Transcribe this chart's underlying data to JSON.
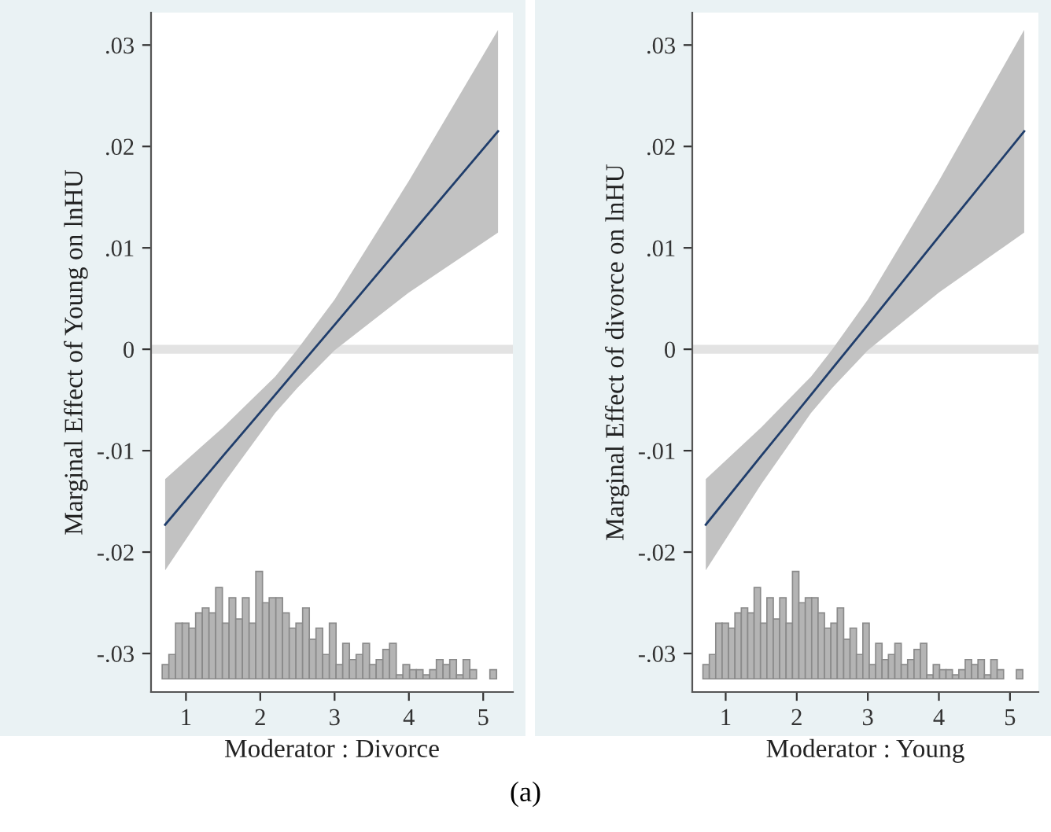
{
  "chart_data": [
    {
      "type": "line",
      "ylabel": "Marginal Effect of Young on lnHU",
      "xlabel": "Moderator : Divorce",
      "annotations": [
        "(a)"
      ],
      "xlim": [
        0.53,
        5.4
      ],
      "xticks": [
        1,
        2,
        3,
        4,
        5
      ],
      "ylim": [
        -0.0338,
        0.0332
      ],
      "yticks": [
        {
          "value": 0.03,
          "label": ".03"
        },
        {
          "value": 0.02,
          "label": ".02"
        },
        {
          "value": 0.01,
          "label": ".01"
        },
        {
          "value": 0,
          "label": "0"
        },
        {
          "value": -0.01,
          "label": "-.01"
        },
        {
          "value": -0.02,
          "label": "-.02"
        },
        {
          "value": -0.03,
          "label": "-.03"
        }
      ],
      "ref_lines": [
        {
          "axis": "y",
          "value": 0,
          "color": "#e3e3e3"
        }
      ],
      "series": [
        {
          "type": "line",
          "color": "#1f3d6b",
          "x": [
            0.72,
            1.5,
            2.2,
            2.5,
            3,
            4,
            5.2
          ],
          "values": [
            -0.0173,
            -0.0105,
            -0.0045,
            -0.0019,
            0.0024,
            0.0111,
            0.0215
          ],
          "lower": [
            -0.0218,
            -0.0133,
            -0.0063,
            -0.0038,
            -0.0001,
            0.0056,
            0.0115
          ],
          "upper": [
            -0.0128,
            -0.0077,
            -0.0027,
            0.0,
            0.0049,
            0.0166,
            0.0315
          ]
        },
        {
          "type": "histogram",
          "color": "#b4b4b4",
          "bins": [
            0.68,
            0.77,
            0.86,
            0.95,
            1.04,
            1.13,
            1.22,
            1.31,
            1.4,
            1.49,
            1.58,
            1.67,
            1.76,
            1.85,
            1.94,
            2.03,
            2.12,
            2.21,
            2.3,
            2.39,
            2.48,
            2.57,
            2.66,
            2.75,
            2.84,
            2.93,
            3.02,
            3.11,
            3.2,
            3.29,
            3.38,
            3.47,
            3.56,
            3.65,
            3.74,
            3.83,
            3.92,
            4.01,
            4.1,
            4.19,
            4.28,
            4.37,
            4.46,
            4.55,
            4.64,
            4.73,
            4.82,
            4.91,
            5.0,
            5.09,
            5.18
          ],
          "values": [
            0.0014,
            0.0024,
            0.0055,
            0.0055,
            0.005,
            0.0065,
            0.007,
            0.0065,
            0.009,
            0.0055,
            0.008,
            0.0059,
            0.008,
            0.0055,
            0.0106,
            0.0075,
            0.008,
            0.008,
            0.0065,
            0.005,
            0.0055,
            0.007,
            0.0039,
            0.005,
            0.0024,
            0.0055,
            0.0014,
            0.0035,
            0.0019,
            0.0024,
            0.0035,
            0.0014,
            0.0019,
            0.0029,
            0.0035,
            0.0004,
            0.0014,
            0.0009,
            0.0009,
            0.0004,
            0.0009,
            0.0019,
            0.0014,
            0.0019,
            0.0004,
            0.0019,
            0.0009,
            null,
            null,
            0.0009
          ],
          "base": [
            -0.0325,
            -0.0325,
            -0.0325,
            -0.0325,
            -0.0325,
            -0.0325,
            -0.0325,
            -0.0325,
            -0.0325,
            -0.0325,
            -0.0325,
            -0.0325,
            -0.0325,
            -0.0325,
            -0.0325,
            -0.0325,
            -0.0325,
            -0.0325,
            -0.0325,
            -0.0325,
            -0.0325,
            -0.0325,
            -0.0325,
            -0.0325,
            -0.0325,
            -0.0325,
            -0.0325,
            -0.0325,
            -0.0325,
            -0.0325,
            -0.0325,
            -0.0325,
            -0.0325,
            -0.0325,
            -0.0325,
            -0.0325,
            -0.0325,
            -0.0325,
            -0.0325,
            -0.0325,
            -0.0325,
            -0.0325,
            -0.0325,
            -0.0325,
            -0.0325,
            -0.0325,
            -0.0325,
            null,
            null,
            -0.0325
          ]
        }
      ]
    },
    {
      "type": "line",
      "ylabel": "Marginal Effect of divorce on lnHU",
      "xlabel": "Moderator : Young",
      "xlim": [
        0.53,
        5.4
      ],
      "xticks": [
        1,
        2,
        3,
        4,
        5
      ],
      "ylim": [
        -0.0338,
        0.0332
      ],
      "yticks": [
        {
          "value": 0.03,
          "label": ".03"
        },
        {
          "value": 0.02,
          "label": ".02"
        },
        {
          "value": 0.01,
          "label": ".01"
        },
        {
          "value": 0,
          "label": "0"
        },
        {
          "value": -0.01,
          "label": "-.01"
        },
        {
          "value": -0.02,
          "label": "-.02"
        },
        {
          "value": -0.03,
          "label": "-.03"
        }
      ],
      "ref_lines": [
        {
          "axis": "y",
          "value": 0,
          "color": "#e3e3e3"
        }
      ],
      "series": [
        {
          "type": "line",
          "color": "#1f3d6b",
          "x": [
            0.72,
            1.5,
            2.2,
            2.5,
            3,
            4,
            5.2
          ],
          "values": [
            -0.0173,
            -0.0105,
            -0.0045,
            -0.0019,
            0.0024,
            0.0111,
            0.0215
          ],
          "lower": [
            -0.0218,
            -0.0133,
            -0.0063,
            -0.0038,
            -0.0001,
            0.0056,
            0.0115
          ],
          "upper": [
            -0.0128,
            -0.0077,
            -0.0027,
            0.0,
            0.0049,
            0.0166,
            0.0315
          ]
        },
        {
          "type": "histogram",
          "color": "#b4b4b4",
          "bins": [
            0.68,
            0.77,
            0.86,
            0.95,
            1.04,
            1.13,
            1.22,
            1.31,
            1.4,
            1.49,
            1.58,
            1.67,
            1.76,
            1.85,
            1.94,
            2.03,
            2.12,
            2.21,
            2.3,
            2.39,
            2.48,
            2.57,
            2.66,
            2.75,
            2.84,
            2.93,
            3.02,
            3.11,
            3.2,
            3.29,
            3.38,
            3.47,
            3.56,
            3.65,
            3.74,
            3.83,
            3.92,
            4.01,
            4.1,
            4.19,
            4.28,
            4.37,
            4.46,
            4.55,
            4.64,
            4.73,
            4.82,
            4.91,
            5.0,
            5.09,
            5.18
          ],
          "values": [
            0.0014,
            0.0024,
            0.0055,
            0.0055,
            0.005,
            0.0065,
            0.007,
            0.0065,
            0.009,
            0.0055,
            0.008,
            0.0059,
            0.008,
            0.0055,
            0.0106,
            0.0075,
            0.008,
            0.008,
            0.0065,
            0.005,
            0.0055,
            0.007,
            0.0039,
            0.005,
            0.0024,
            0.0055,
            0.0014,
            0.0035,
            0.0019,
            0.0024,
            0.0035,
            0.0014,
            0.0019,
            0.0029,
            0.0035,
            0.0004,
            0.0014,
            0.0009,
            0.0009,
            0.0004,
            0.0009,
            0.0019,
            0.0014,
            0.0019,
            0.0004,
            0.0019,
            0.0009,
            null,
            null,
            0.0009
          ],
          "base": [
            -0.0325,
            -0.0325,
            -0.0325,
            -0.0325,
            -0.0325,
            -0.0325,
            -0.0325,
            -0.0325,
            -0.0325,
            -0.0325,
            -0.0325,
            -0.0325,
            -0.0325,
            -0.0325,
            -0.0325,
            -0.0325,
            -0.0325,
            -0.0325,
            -0.0325,
            -0.0325,
            -0.0325,
            -0.0325,
            -0.0325,
            -0.0325,
            -0.0325,
            -0.0325,
            -0.0325,
            -0.0325,
            -0.0325,
            -0.0325,
            -0.0325,
            -0.0325,
            -0.0325,
            -0.0325,
            -0.0325,
            -0.0325,
            -0.0325,
            -0.0325,
            -0.0325,
            -0.0325,
            -0.0325,
            -0.0325,
            -0.0325,
            -0.0325,
            -0.0325,
            -0.0325,
            -0.0325,
            null,
            null,
            -0.0325
          ]
        }
      ]
    }
  ]
}
